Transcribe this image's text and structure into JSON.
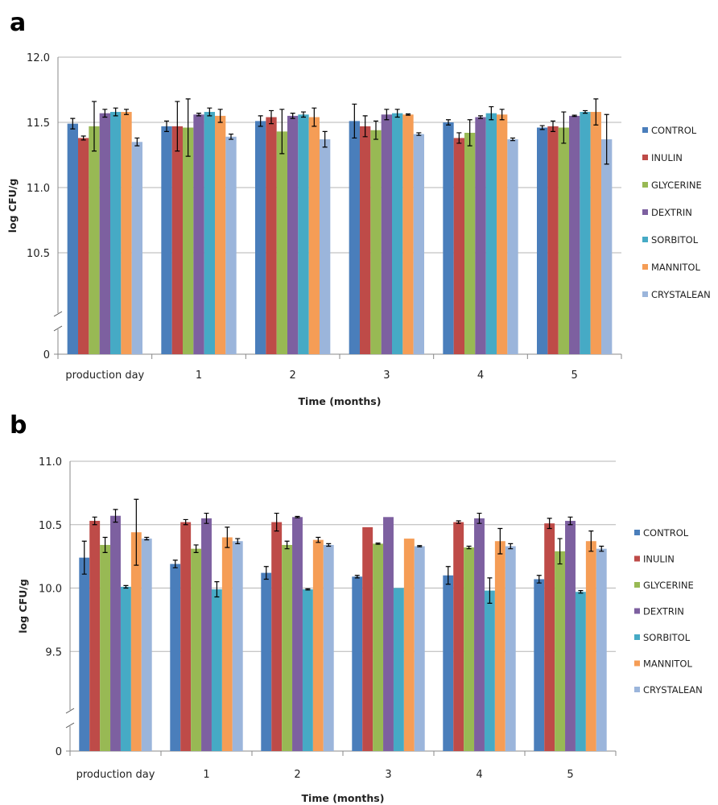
{
  "series_colors": [
    "#4A7EBB",
    "#BE4B48",
    "#98B954",
    "#7D60A0",
    "#46AAC5",
    "#F59D56",
    "#9BB5DB"
  ],
  "chart_data": [
    {
      "panel_label": "a",
      "type": "bar",
      "title": "",
      "xlabel": "Time (months)",
      "ylabel": "log CFU/g",
      "categories": [
        "production day",
        "1",
        "2",
        "3",
        "4",
        "5"
      ],
      "ylim": [
        10.0,
        12.0
      ],
      "y_ticks": [
        "12.0",
        "11.5",
        "11.0",
        "10.5",
        "0"
      ],
      "axis_break": true,
      "grid": true,
      "legend_position": "right",
      "series": [
        {
          "name": "CONTROL",
          "values": [
            11.49,
            11.47,
            11.51,
            11.51,
            11.5,
            11.46
          ],
          "errors": [
            0.04,
            0.04,
            0.04,
            0.13,
            0.02,
            0.015
          ]
        },
        {
          "name": "INULIN",
          "values": [
            11.38,
            11.47,
            11.54,
            11.47,
            11.38,
            11.47
          ],
          "errors": [
            0.015,
            0.19,
            0.05,
            0.08,
            0.04,
            0.04
          ]
        },
        {
          "name": "GLYCERINE",
          "values": [
            11.47,
            11.46,
            11.43,
            11.44,
            11.42,
            11.46
          ],
          "errors": [
            0.19,
            0.22,
            0.17,
            0.07,
            0.1,
            0.12
          ]
        },
        {
          "name": "DEXTRIN",
          "values": [
            11.57,
            11.56,
            11.55,
            11.56,
            11.54,
            11.55
          ],
          "errors": [
            0.03,
            0.01,
            0.02,
            0.04,
            0.01,
            0.005
          ]
        },
        {
          "name": "SORBITOL",
          "values": [
            11.58,
            11.58,
            11.56,
            11.57,
            11.57,
            11.58
          ],
          "errors": [
            0.03,
            0.03,
            0.02,
            0.03,
            0.05,
            0.01
          ]
        },
        {
          "name": "MANNITOL",
          "values": [
            11.58,
            11.55,
            11.54,
            11.56,
            11.56,
            11.58
          ],
          "errors": [
            0.02,
            0.05,
            0.07,
            0.005,
            0.04,
            0.1
          ]
        },
        {
          "name": "CRYSTALEAN",
          "values": [
            11.35,
            11.39,
            11.37,
            11.41,
            11.37,
            11.37
          ],
          "errors": [
            0.03,
            0.02,
            0.06,
            0.01,
            0.01,
            0.19
          ]
        }
      ]
    },
    {
      "panel_label": "b",
      "type": "bar",
      "title": "",
      "xlabel": "Time (months)",
      "ylabel": "log CFU/g",
      "categories": [
        "production day",
        "1",
        "2",
        "3",
        "4",
        "5"
      ],
      "ylim": [
        9.0,
        11.0
      ],
      "y_ticks": [
        "11.0",
        "10.5",
        "10.0",
        "9.5",
        "0"
      ],
      "axis_break": true,
      "grid": true,
      "legend_position": "right",
      "series": [
        {
          "name": "CONTROL",
          "values": [
            10.24,
            10.19,
            10.12,
            10.09,
            10.1,
            10.07
          ],
          "errors": [
            0.13,
            0.03,
            0.05,
            0.01,
            0.07,
            0.03
          ]
        },
        {
          "name": "INULIN",
          "values": [
            10.53,
            10.52,
            10.52,
            10.48,
            10.52,
            10.51
          ],
          "errors": [
            0.03,
            0.02,
            0.07,
            0.0,
            0.01,
            0.04
          ]
        },
        {
          "name": "GLYCERINE",
          "values": [
            10.34,
            10.31,
            10.34,
            10.35,
            10.32,
            10.29
          ],
          "errors": [
            0.06,
            0.03,
            0.03,
            0.005,
            0.01,
            0.1
          ]
        },
        {
          "name": "DEXTRIN",
          "values": [
            10.57,
            10.55,
            10.56,
            10.56,
            10.55,
            10.53
          ],
          "errors": [
            0.05,
            0.04,
            0.005,
            0.0,
            0.04,
            0.03
          ]
        },
        {
          "name": "SORBITOL",
          "values": [
            10.01,
            9.99,
            9.99,
            10.0,
            9.98,
            9.97
          ],
          "errors": [
            0.01,
            0.06,
            0.005,
            0.0,
            0.1,
            0.01
          ]
        },
        {
          "name": "MANNITOL",
          "values": [
            10.44,
            10.4,
            10.38,
            10.39,
            10.37,
            10.37
          ],
          "errors": [
            0.26,
            0.08,
            0.02,
            0.0,
            0.1,
            0.08
          ]
        },
        {
          "name": "CRYSTALEAN",
          "values": [
            10.39,
            10.37,
            10.34,
            10.33,
            10.33,
            10.31
          ],
          "errors": [
            0.01,
            0.02,
            0.01,
            0.005,
            0.02,
            0.02
          ]
        }
      ]
    }
  ]
}
